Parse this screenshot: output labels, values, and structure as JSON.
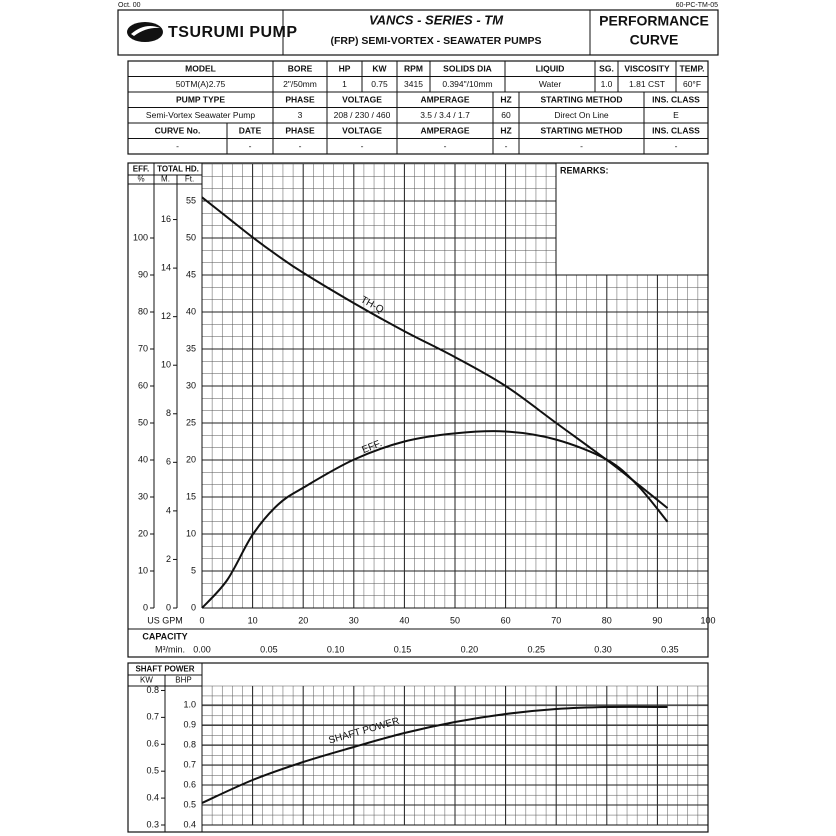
{
  "header": {
    "date_code": "Oct. 00",
    "doc_code": "60-PC-TM-05",
    "brand": "TSURUMI PUMP",
    "series": "VANCS - SERIES - TM",
    "subtitle": "(FRP) SEMI-VORTEX - SEAWATER PUMPS",
    "doc_type_line1": "PERFORMANCE",
    "doc_type_line2": "CURVE"
  },
  "spec_table": {
    "rows": [
      [
        "MODEL",
        "BORE",
        "HP",
        "KW",
        "RPM",
        "SOLIDS DIA",
        "LIQUID",
        "SG.",
        "VISCOSITY",
        "TEMP."
      ],
      [
        "50TM(A)2.75",
        "2\"/50mm",
        "1",
        "0.75",
        "3415",
        "0.394\"/10mm",
        "Water",
        "1.0",
        "1.81 CST",
        "60°F"
      ],
      [
        "PUMP TYPE",
        "PHASE",
        "VOLTAGE",
        "AMPERAGE",
        "HZ",
        "STARTING METHOD",
        "INS. CLASS"
      ],
      [
        "Semi-Vortex Seawater Pump",
        "3",
        "208 / 230 / 460",
        "3.5 / 3.4 / 1.7",
        "60",
        "Direct On Line",
        "E"
      ],
      [
        "CURVE No.",
        "DATE",
        "PHASE",
        "VOLTAGE",
        "AMPERAGE",
        "HZ",
        "STARTING METHOD",
        "INS. CLASS"
      ],
      [
        "-",
        "-",
        "-",
        "-",
        "-",
        "-",
        "-",
        "-"
      ]
    ]
  },
  "chart_data": [
    {
      "type": "line",
      "remarks_label": "REMARKS:",
      "x_label": "US GPM",
      "x2_title": "CAPACITY",
      "x2_label": "M³/min.",
      "y_header": "TOTAL HD.",
      "y_label": "Ft.",
      "y3_label": "M.",
      "y2_header": "EFF.",
      "y2_label": "%",
      "x": [
        0,
        5,
        10,
        15,
        20,
        30,
        40,
        50,
        60,
        70,
        80,
        86,
        92
      ],
      "xlim": [
        0,
        100
      ],
      "xticks": [
        0,
        10,
        20,
        30,
        40,
        50,
        60,
        70,
        80,
        90,
        100
      ],
      "x2lim": [
        0,
        0.3785
      ],
      "x2ticks": [
        {
          "value": 0,
          "label": "0.00"
        },
        0.05,
        {
          "value": 0.1,
          "label": "0.10"
        },
        0.15,
        {
          "value": 0.2,
          "label": "0.20"
        },
        0.25,
        {
          "value": 0.3,
          "label": "0.30"
        },
        0.35
      ],
      "ylim": [
        0,
        60
      ],
      "yticks": [
        0,
        5,
        10,
        15,
        20,
        25,
        30,
        35,
        40,
        45,
        50,
        55
      ],
      "y2lim": [
        0,
        120
      ],
      "y2ticks": [
        0,
        10,
        20,
        30,
        40,
        50,
        60,
        70,
        80,
        90,
        100
      ],
      "y3lim": [
        0,
        18.288
      ],
      "y3ticks": [
        0,
        2,
        4,
        6,
        8,
        10,
        12,
        14,
        16
      ],
      "grid": true,
      "series": [
        {
          "name": "TH-Q",
          "color": "#111111",
          "values": [
            55.5,
            52.8,
            50.1,
            47.6,
            45.3,
            41.2,
            37.4,
            33.9,
            30.0,
            25.0,
            20.0,
            16.8,
            13.5
          ]
        },
        {
          "name": "EFF.",
          "color": "#111111",
          "axis": "y2",
          "values": [
            0,
            7.6,
            19.8,
            27.9,
            32.5,
            40.1,
            45.0,
            47.2,
            47.7,
            45.5,
            40.1,
            33.3,
            23.3
          ]
        }
      ]
    },
    {
      "type": "line",
      "title": "SHAFT POWER",
      "y_label": "BHP",
      "y2_label": "KW",
      "x": [
        0,
        10,
        20,
        30,
        40,
        50,
        60,
        70,
        80,
        92
      ],
      "xlim": [
        0,
        100
      ],
      "ylim": [
        0.4,
        1.095
      ],
      "yticks": [
        0.4,
        0.5,
        0.6,
        0.7,
        0.8,
        0.9,
        {
          "value": 1,
          "label": "1.0"
        }
      ],
      "y2lim": [
        0.3,
        0.8166
      ],
      "y2ticks": [
        0.3,
        0.4,
        0.5,
        0.6,
        0.7,
        0.8
      ],
      "grid": true,
      "series": [
        {
          "name": "SHAFT POWER",
          "color": "#111111",
          "values": [
            0.51,
            0.625,
            0.715,
            0.79,
            0.86,
            0.915,
            0.955,
            0.98,
            0.99,
            0.99
          ]
        }
      ]
    }
  ]
}
